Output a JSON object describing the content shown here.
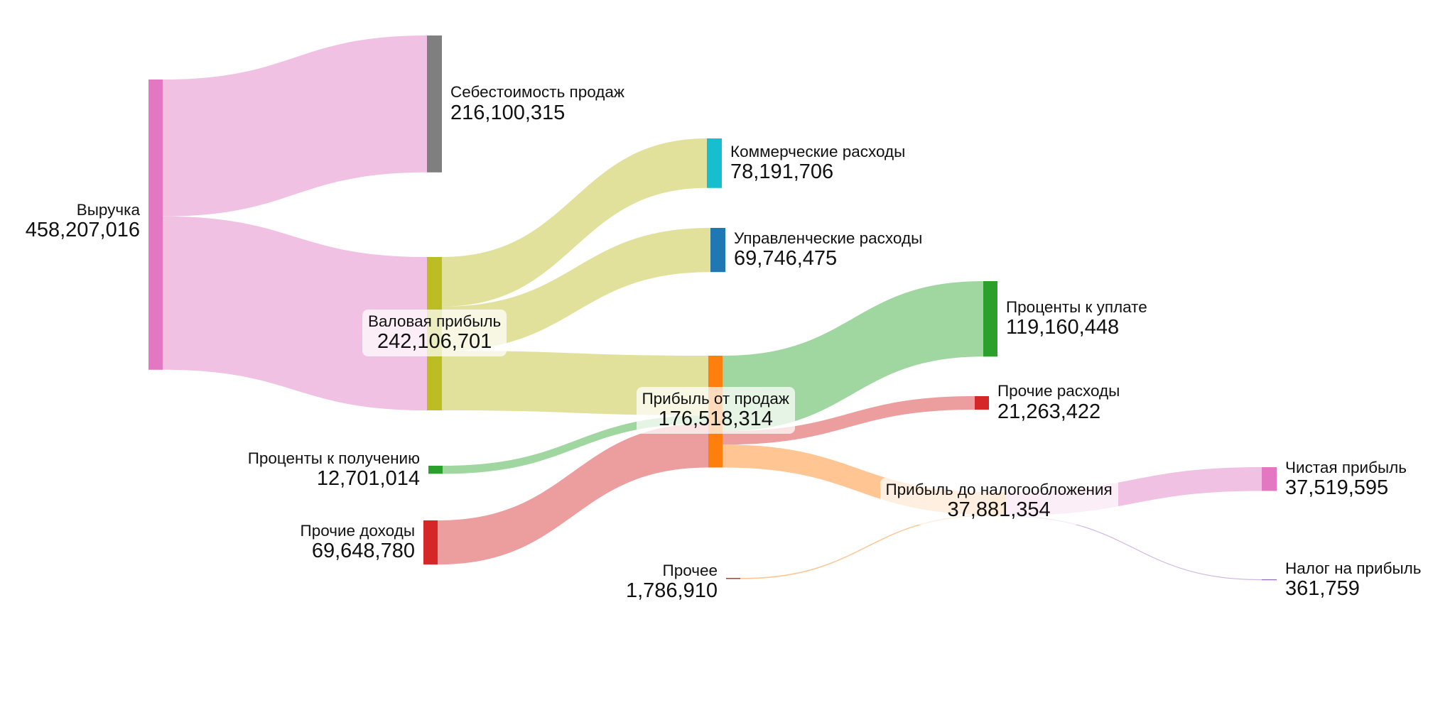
{
  "chart_data": {
    "type": "sankey",
    "title": "",
    "nodes": [
      {
        "id": "revenue",
        "name": "Выручка",
        "value": 458207016,
        "value_label": "458,207,016",
        "color": "#e377c2"
      },
      {
        "id": "cogs",
        "name": "Себестоимость продаж",
        "value": 216100315,
        "value_label": "216,100,315",
        "color": "#7f7f7f"
      },
      {
        "id": "gross",
        "name": "Валовая прибыль",
        "value": 242106701,
        "value_label": "242,106,701",
        "color": "#bcbd22"
      },
      {
        "id": "selling",
        "name": "Коммерческие расходы",
        "value": 78191706,
        "value_label": "78,191,706",
        "color": "#17becf"
      },
      {
        "id": "admin",
        "name": "Управленческие расходы",
        "value": 69746475,
        "value_label": "69,746,475",
        "color": "#1f77b4"
      },
      {
        "id": "op",
        "name": "Прибыль от продаж",
        "value": 176518314,
        "value_label": "176,518,314",
        "color": "#ff7f0e"
      },
      {
        "id": "int_recv",
        "name": "Проценты к получению",
        "value": 12701014,
        "value_label": "12,701,014",
        "color": "#2ca02c"
      },
      {
        "id": "other_inc",
        "name": "Прочие доходы",
        "value": 69648780,
        "value_label": "69,648,780",
        "color": "#d62728"
      },
      {
        "id": "int_pay",
        "name": "Проценты к уплате",
        "value": 119160448,
        "value_label": "119,160,448",
        "color": "#2ca02c"
      },
      {
        "id": "other_exp",
        "name": "Прочие расходы",
        "value": 21263422,
        "value_label": "21,263,422",
        "color": "#d62728"
      },
      {
        "id": "ebt",
        "name": "Прибыль до налогообложения",
        "value": 37881354,
        "value_label": "37,881,354",
        "color": "#ffbb78"
      },
      {
        "id": "other",
        "name": "Прочее",
        "value": 1786910,
        "value_label": "1,786,910",
        "color": "#8c564b"
      },
      {
        "id": "net",
        "name": "Чистая прибыль",
        "value": 37519595,
        "value_label": "37,519,595",
        "color": "#e377c2"
      },
      {
        "id": "tax",
        "name": "Налог на прибыль",
        "value": 361759,
        "value_label": "361,759",
        "color": "#9467bd"
      }
    ],
    "links": [
      {
        "source": "revenue",
        "target": "cogs",
        "value": 216100315,
        "color": "#f0c1e2"
      },
      {
        "source": "revenue",
        "target": "gross",
        "value": 242106701,
        "color": "#f0c1e2"
      },
      {
        "source": "gross",
        "target": "selling",
        "value": 78191706,
        "color": "#e1e19c"
      },
      {
        "source": "gross",
        "target": "admin",
        "value": 69746475,
        "color": "#e1e19c"
      },
      {
        "source": "gross",
        "target": "op",
        "value": 94168520,
        "color": "#e1e19c"
      },
      {
        "source": "int_recv",
        "target": "op",
        "value": 12701014,
        "color": "#a0d69f"
      },
      {
        "source": "other_inc",
        "target": "op",
        "value": 69648780,
        "color": "#ec9e9f"
      },
      {
        "source": "op",
        "target": "int_pay",
        "value": 119160448,
        "color": "#a0d69f"
      },
      {
        "source": "op",
        "target": "other_exp",
        "value": 21263422,
        "color": "#ec9e9f"
      },
      {
        "source": "op",
        "target": "ebt",
        "value": 36094444,
        "color": "#ffc592"
      },
      {
        "source": "other",
        "target": "ebt",
        "value": 1786910,
        "color": "#ffc592"
      },
      {
        "source": "ebt",
        "target": "net",
        "value": 37519595,
        "color": "#f0c1e2"
      },
      {
        "source": "ebt",
        "target": "tax",
        "value": 361759,
        "color": "#cdb4e3"
      }
    ]
  }
}
